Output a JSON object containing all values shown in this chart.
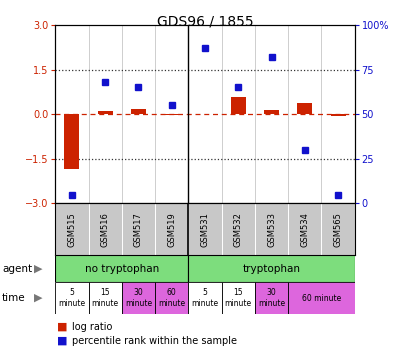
{
  "title": "GDS96 / 1855",
  "samples": [
    "GSM515",
    "GSM516",
    "GSM517",
    "GSM519",
    "GSM531",
    "GSM532",
    "GSM533",
    "GSM534",
    "GSM565"
  ],
  "log_ratio": [
    -1.85,
    0.12,
    0.18,
    -0.03,
    0.0,
    0.58,
    0.15,
    0.38,
    -0.07
  ],
  "percentile_rank": [
    5,
    68,
    65,
    55,
    87,
    65,
    82,
    30,
    5
  ],
  "ylim_left": [
    -3,
    3
  ],
  "ylim_right": [
    0,
    100
  ],
  "yticks_left": [
    -3,
    -1.5,
    0,
    1.5,
    3
  ],
  "yticks_right": [
    0,
    25,
    50,
    75,
    100
  ],
  "right_tick_labels": [
    "0",
    "25",
    "50",
    "75",
    "100%"
  ],
  "hlines_dotted": [
    -1.5,
    1.5
  ],
  "hline_dashed": 0,
  "bar_color": "#cc2200",
  "dot_color": "#1111cc",
  "zero_line_color": "#cc2200",
  "dotted_line_color": "#333333",
  "sample_bg_color": "#c8c8c8",
  "agent_green": "#7ddd7d",
  "time_white": "#ffffff",
  "time_pink": "#dd66dd",
  "title_fontsize": 10,
  "legend_red_label": "log ratio",
  "legend_blue_label": "percentile rank within the sample"
}
